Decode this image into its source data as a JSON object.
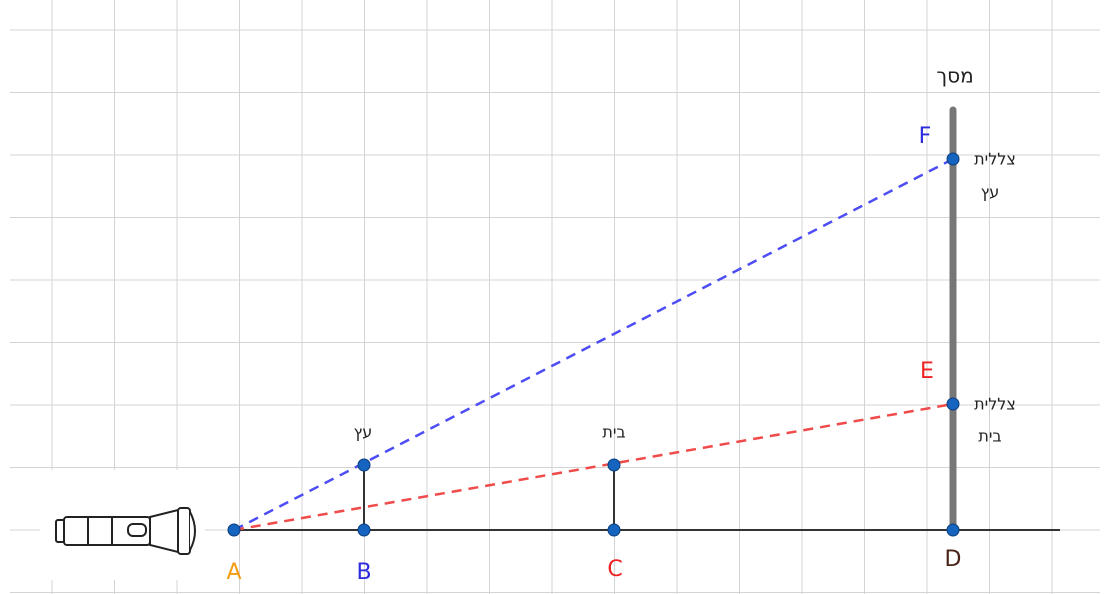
{
  "points": {
    "A": "A",
    "B": "B",
    "C": "C",
    "D": "D",
    "E": "E",
    "F": "F"
  },
  "screen_label": "מסך",
  "tree_label": "עץ",
  "house_label": "בית",
  "tree_shadow": [
    "צללית",
    "עץ"
  ],
  "house_shadow": [
    "צללית",
    "בית"
  ]
}
